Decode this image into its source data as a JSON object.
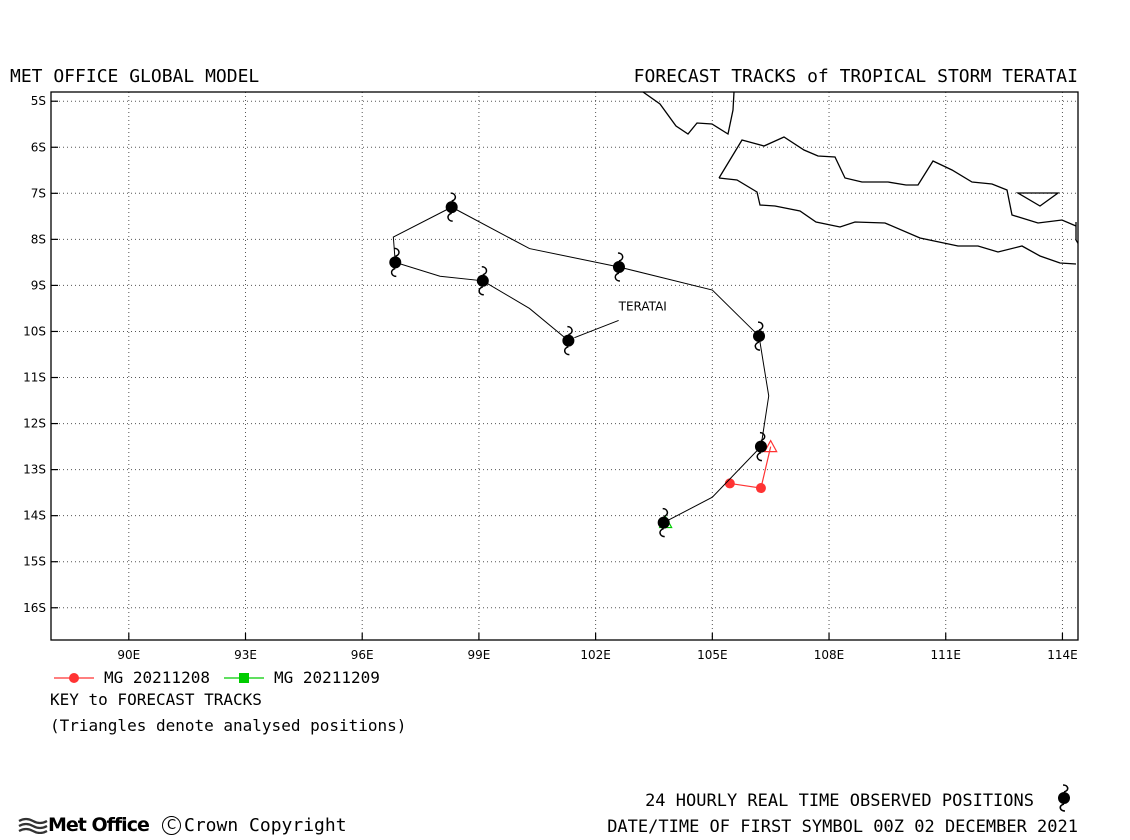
{
  "header": {
    "left_title": "MET OFFICE GLOBAL MODEL",
    "right_title": "FORECAST TRACKS of TROPICAL STORM TERATAI"
  },
  "axes": {
    "lon_range": [
      88,
      114.4
    ],
    "lat_range": [
      -4.8,
      -16.7
    ],
    "lat_ticks": [
      {
        "value": -5,
        "label": "5S"
      },
      {
        "value": -6,
        "label": "6S"
      },
      {
        "value": -7,
        "label": "7S"
      },
      {
        "value": -8,
        "label": "8S"
      },
      {
        "value": -9,
        "label": "9S"
      },
      {
        "value": -10,
        "label": "10S"
      },
      {
        "value": -11,
        "label": "11S"
      },
      {
        "value": -12,
        "label": "12S"
      },
      {
        "value": -13,
        "label": "13S"
      },
      {
        "value": -14,
        "label": "14S"
      },
      {
        "value": -15,
        "label": "15S"
      },
      {
        "value": -16,
        "label": "16S"
      }
    ],
    "lon_ticks": [
      {
        "value": 90,
        "label": "90E"
      },
      {
        "value": 93,
        "label": "93E"
      },
      {
        "value": 96,
        "label": "96E"
      },
      {
        "value": 99,
        "label": "99E"
      },
      {
        "value": 102,
        "label": "102E"
      },
      {
        "value": 105,
        "label": "105E"
      },
      {
        "value": 108,
        "label": "108E"
      },
      {
        "value": 111,
        "label": "111E"
      },
      {
        "value": 114,
        "label": "114E"
      }
    ],
    "grid": "dotted"
  },
  "storm": {
    "name": "TERATAI",
    "observed_track": [
      {
        "lon": 103.75,
        "lat": -14.15
      },
      {
        "lon": 105.0,
        "lat": -13.6
      },
      {
        "lon": 106.25,
        "lat": -12.5
      },
      {
        "lon": 106.45,
        "lat": -11.4
      },
      {
        "lon": 106.2,
        "lat": -10.1
      },
      {
        "lon": 105.0,
        "lat": -9.1
      },
      {
        "lon": 102.6,
        "lat": -8.6
      },
      {
        "lon": 100.3,
        "lat": -8.2
      },
      {
        "lon": 98.3,
        "lat": -7.3
      },
      {
        "lon": 96.8,
        "lat": -7.95
      },
      {
        "lon": 96.85,
        "lat": -8.5
      },
      {
        "lon": 98.0,
        "lat": -8.8
      },
      {
        "lon": 99.1,
        "lat": -8.9
      },
      {
        "lon": 100.3,
        "lat": -9.5
      },
      {
        "lon": 101.3,
        "lat": -10.2
      }
    ],
    "symbols_24h": [
      {
        "lon": 103.75,
        "lat": -14.15
      },
      {
        "lon": 106.25,
        "lat": -12.5
      },
      {
        "lon": 106.2,
        "lat": -10.1
      },
      {
        "lon": 102.6,
        "lat": -8.6
      },
      {
        "lon": 98.3,
        "lat": -7.3
      },
      {
        "lon": 96.85,
        "lat": -8.5
      },
      {
        "lon": 99.1,
        "lat": -8.9
      },
      {
        "lon": 101.3,
        "lat": -10.2
      }
    ],
    "label_position": {
      "lon": 102.9,
      "lat": -9.5
    }
  },
  "forecasts": [
    {
      "name": "MG 20211208",
      "color": "#ff3333",
      "marker": "circle",
      "track": [
        {
          "lon": 106.5,
          "lat": -12.5
        },
        {
          "lon": 106.25,
          "lat": -13.4
        },
        {
          "lon": 105.45,
          "lat": -13.3
        }
      ],
      "analysed": {
        "lon": 106.5,
        "lat": -12.5
      }
    },
    {
      "name": "MG 20211209",
      "color": "#00cc00",
      "marker": "square",
      "track": [],
      "analysed": {
        "lon": 103.8,
        "lat": -14.15
      }
    }
  ],
  "key": {
    "title": "KEY to FORECAST TRACKS",
    "note": "(Triangles denote analysed positions)"
  },
  "footer": {
    "observed_positions": "24 HOURLY REAL TIME OBSERVED POSITIONS",
    "datetime": "DATE/TIME OF FIRST SYMBOL 00Z 02 DECEMBER 2021",
    "logo_text": "Met Office",
    "copyright": "Crown Copyright",
    "copyright_symbol": "C"
  },
  "colors": {
    "land_outline": "#000000",
    "track": "#000000"
  }
}
